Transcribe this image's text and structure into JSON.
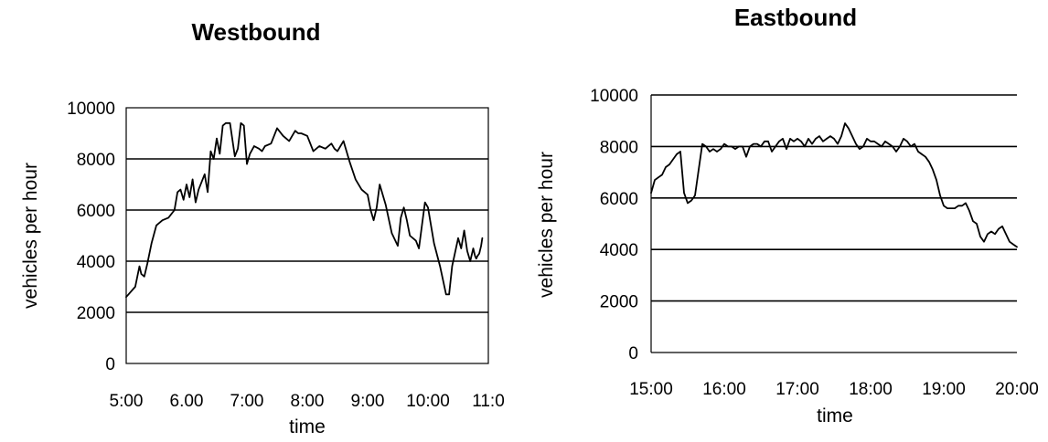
{
  "chart_data": [
    {
      "type": "line",
      "title": "Westbound",
      "xlabel": "time",
      "ylabel": "vehicles per hour",
      "ylim": [
        0,
        10000
      ],
      "yticks": [
        0,
        2000,
        4000,
        6000,
        8000,
        10000
      ],
      "xlim": [
        5,
        11
      ],
      "xtick_labels": [
        "5:00",
        "6.00",
        "7:00",
        "8:00",
        "9:00",
        "10:00",
        "11:0"
      ],
      "grid": "horizontal",
      "x": [
        5.0,
        5.15,
        5.22,
        5.25,
        5.3,
        5.35,
        5.42,
        5.5,
        5.6,
        5.7,
        5.8,
        5.85,
        5.9,
        5.95,
        6.0,
        6.05,
        6.1,
        6.15,
        6.2,
        6.25,
        6.3,
        6.35,
        6.4,
        6.45,
        6.5,
        6.55,
        6.6,
        6.65,
        6.72,
        6.8,
        6.85,
        6.9,
        6.95,
        7.0,
        7.05,
        7.12,
        7.2,
        7.25,
        7.3,
        7.4,
        7.5,
        7.6,
        7.7,
        7.8,
        7.85,
        7.9,
        8.0,
        8.1,
        8.2,
        8.3,
        8.4,
        8.45,
        8.5,
        8.6,
        8.7,
        8.8,
        8.9,
        9.0,
        9.05,
        9.1,
        9.15,
        9.2,
        9.3,
        9.4,
        9.5,
        9.55,
        9.6,
        9.65,
        9.7,
        9.8,
        9.85,
        9.9,
        9.95,
        10.0,
        10.05,
        10.1,
        10.2,
        10.3,
        10.35,
        10.4,
        10.5,
        10.55,
        10.6,
        10.65,
        10.7,
        10.75,
        10.78,
        10.8,
        10.82,
        10.85,
        10.88,
        10.9
      ],
      "values": [
        2600,
        3000,
        3800,
        3500,
        3400,
        3900,
        4700,
        5400,
        5600,
        5700,
        6000,
        6700,
        6800,
        6400,
        7000,
        6500,
        7200,
        6300,
        6800,
        7100,
        7400,
        6700,
        8300,
        8000,
        8800,
        8200,
        9300,
        9400,
        9400,
        8100,
        8400,
        9400,
        9300,
        7800,
        8200,
        8500,
        8400,
        8300,
        8500,
        8600,
        9200,
        8900,
        8700,
        9100,
        9000,
        9000,
        8900,
        8300,
        8500,
        8400,
        8600,
        8400,
        8300,
        8700,
        7900,
        7200,
        6800,
        6600,
        6000,
        5600,
        6100,
        7000,
        6200,
        5100,
        4600,
        5700,
        6100,
        5600,
        5000,
        4800,
        4500,
        5400,
        6300,
        6100,
        5400,
        4700,
        3800,
        2700,
        2700,
        3800,
        4900,
        4500,
        5200,
        4400,
        4000,
        4500,
        4200,
        4100,
        4200,
        4300,
        4600,
        4900
      ],
      "annotations": []
    },
    {
      "type": "line",
      "title": "Eastbound",
      "xlabel": "time",
      "ylabel": "vehicles per hour",
      "ylim": [
        0,
        10000
      ],
      "yticks": [
        0,
        2000,
        4000,
        6000,
        8000,
        10000
      ],
      "xlim": [
        15,
        20
      ],
      "xtick_labels": [
        "15:00",
        "16:00",
        "17:00",
        "18:00",
        "19:00",
        "20:00"
      ],
      "grid": "horizontal",
      "x": [
        15.0,
        15.05,
        15.1,
        15.15,
        15.2,
        15.25,
        15.3,
        15.35,
        15.4,
        15.45,
        15.5,
        15.55,
        15.6,
        15.65,
        15.7,
        15.75,
        15.8,
        15.85,
        15.9,
        15.95,
        16.0,
        16.05,
        16.1,
        16.15,
        16.2,
        16.25,
        16.3,
        16.35,
        16.4,
        16.45,
        16.5,
        16.55,
        16.6,
        16.65,
        16.7,
        16.75,
        16.8,
        16.85,
        16.9,
        16.95,
        17.0,
        17.05,
        17.1,
        17.15,
        17.2,
        17.25,
        17.3,
        17.35,
        17.4,
        17.45,
        17.5,
        17.55,
        17.6,
        17.65,
        17.7,
        17.75,
        17.8,
        17.85,
        17.9,
        17.95,
        18.0,
        18.05,
        18.1,
        18.15,
        18.2,
        18.25,
        18.3,
        18.35,
        18.4,
        18.45,
        18.5,
        18.55,
        18.6,
        18.65,
        18.7,
        18.75,
        18.8,
        18.85,
        18.9,
        18.95,
        19.0,
        19.05,
        19.1,
        19.15,
        19.2,
        19.25,
        19.3,
        19.35,
        19.4,
        19.45,
        19.5,
        19.55,
        19.6,
        19.65,
        19.7,
        19.75,
        19.8,
        19.85,
        19.9,
        19.95,
        20.0
      ],
      "values": [
        6200,
        6700,
        6800,
        6900,
        7200,
        7300,
        7500,
        7700,
        7800,
        6200,
        5800,
        5900,
        6100,
        7100,
        8100,
        8000,
        7800,
        7900,
        7800,
        7900,
        8100,
        8000,
        8000,
        7900,
        8000,
        8000,
        7600,
        8000,
        8100,
        8100,
        8000,
        8200,
        8200,
        7800,
        8000,
        8200,
        8300,
        7900,
        8300,
        8200,
        8300,
        8200,
        8000,
        8300,
        8100,
        8300,
        8400,
        8200,
        8300,
        8400,
        8300,
        8100,
        8400,
        8900,
        8700,
        8400,
        8100,
        7900,
        8000,
        8300,
        8200,
        8200,
        8100,
        8000,
        8200,
        8100,
        8000,
        7800,
        8000,
        8300,
        8200,
        8000,
        8100,
        7800,
        7700,
        7600,
        7400,
        7100,
        6700,
        6100,
        5700,
        5600,
        5600,
        5600,
        5700,
        5700,
        5800,
        5500,
        5100,
        5000,
        4500,
        4300,
        4600,
        4700,
        4600,
        4800,
        4900,
        4600,
        4300,
        4200,
        4100
      ],
      "annotations": []
    }
  ]
}
